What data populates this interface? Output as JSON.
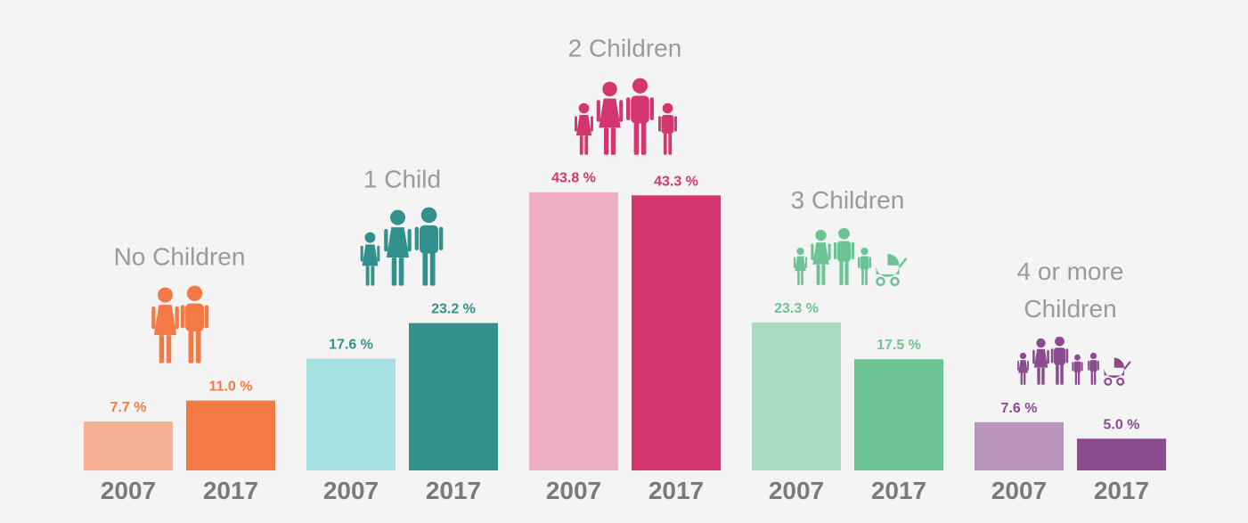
{
  "chart_data": {
    "type": "bar",
    "title": "",
    "xlabel": "",
    "ylabel": "",
    "ylim": [
      0,
      45
    ],
    "grid": false,
    "legend": "none",
    "categories": [
      "2007",
      "2017"
    ],
    "groups": [
      {
        "name": "No Children",
        "title_lines": [
          "No Children"
        ],
        "icon": "couple-icon",
        "color": "#f47a45",
        "light_color": "#f8b092",
        "values": [
          7.7,
          11.0
        ],
        "labels": [
          "7.7 %",
          "11.0 %"
        ]
      },
      {
        "name": "1 Child",
        "title_lines": [
          "1 Child"
        ],
        "icon": "family-one-child-icon",
        "color": "#33918d",
        "light_color": "#a6e1e1",
        "values": [
          17.6,
          23.2
        ],
        "labels": [
          "17.6 %",
          "23.2 %"
        ]
      },
      {
        "name": "2 Children",
        "title_lines": [
          "2 Children"
        ],
        "icon": "family-two-children-icon",
        "color": "#d3356e",
        "light_color": "#edaec6",
        "values": [
          43.8,
          43.3
        ],
        "labels": [
          "43.8 %",
          "43.3 %"
        ]
      },
      {
        "name": "3 Children",
        "title_lines": [
          "3 Children"
        ],
        "icon": "family-three-children-stroller-icon",
        "color": "#6cc494",
        "light_color": "#a8dcc0",
        "values": [
          23.3,
          17.5
        ],
        "labels": [
          "23.3 %",
          "17.5 %"
        ]
      },
      {
        "name": "4 or more Children",
        "title_lines": [
          "4 or more",
          "Children"
        ],
        "icon": "family-four-children-stroller-icon",
        "color": "#8c4a8f",
        "light_color": "#b994bc",
        "values": [
          7.6,
          5.0
        ],
        "labels": [
          "7.6 %",
          "5.0 %"
        ]
      }
    ]
  }
}
